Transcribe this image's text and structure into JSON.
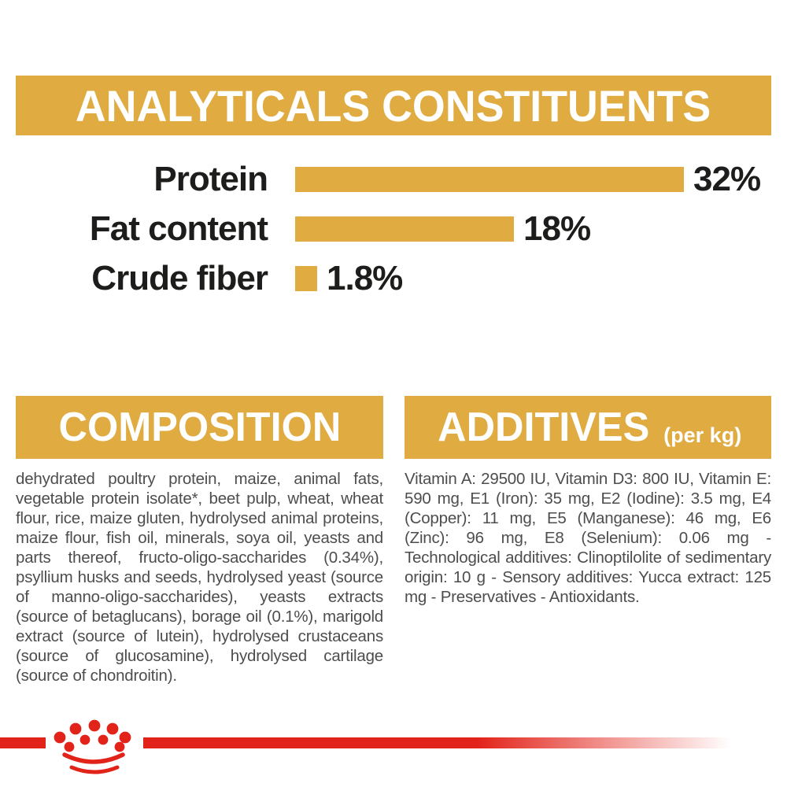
{
  "colors": {
    "gold": "#E0AC42",
    "red": "#E2231A",
    "label_ink": "#1D1D1B",
    "body_ink": "#4D4D4D"
  },
  "header": {
    "title": "ANALYTICALS CONSTITUENTS"
  },
  "chart_data": {
    "type": "bar",
    "orientation": "horizontal",
    "title": "ANALYTICALS CONSTITUENTS",
    "categories": [
      "Protein",
      "Fat content",
      "Crude fiber"
    ],
    "values": [
      32,
      18,
      1.8
    ],
    "value_labels": [
      "32%",
      "18%",
      "1.8%"
    ],
    "unit": "%",
    "xlim": [
      0,
      32
    ],
    "bar_color": "#E0AC42",
    "grid": false,
    "legend": false
  },
  "sections": {
    "composition": {
      "title": "COMPOSITION",
      "body": "dehydrated poultry protein, maize, animal fats, vegetable protein isolate*, beet pulp, wheat, wheat flour, rice, maize gluten, hydrolysed animal proteins, maize flour, fish oil, minerals, soya oil, yeasts and parts thereof, fructo-oligo-saccharides (0.34%), psyllium husks and seeds, hydrolysed yeast (source of manno-oligo-saccharides), yeasts extracts (source of betaglucans), borage oil (0.1%), marigold extract (source of lutein), hydrolysed crustaceans (source of glucosamine), hydrolysed cartilage (source of chondroitin)."
    },
    "additives": {
      "title": "ADDITIVES",
      "title_suffix": "(per kg)",
      "body": "Vitamin A: 29500 IU, Vitamin D3: 800 IU, Vitamin E: 590 mg, E1 (Iron): 35 mg, E2 (Iodine): 3.5 mg, E4 (Copper): 11 mg, E5 (Manganese): 46 mg, E6 (Zinc): 96 mg, E8 (Selenium): 0.06 mg - Technological additives: Clinoptilolite of sedimentary origin: 10 g - Sensory additives: Yucca extract: 125 mg - Preservatives - Antioxidants."
    }
  },
  "footer": {
    "logo": "royal-canin-crown"
  }
}
